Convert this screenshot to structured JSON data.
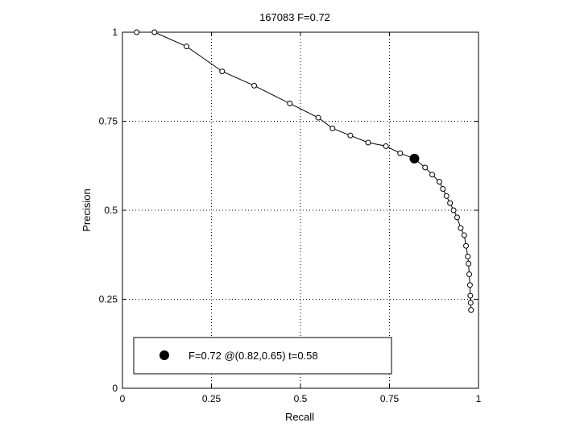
{
  "chart_data": {
    "type": "line",
    "title": "167083 F=0.72",
    "xlabel": "Recall",
    "ylabel": "Precision",
    "xlim": [
      0,
      1
    ],
    "ylim": [
      0,
      1
    ],
    "x_ticks": [
      "0",
      "0.25",
      "0.5",
      "0.75",
      "1"
    ],
    "y_ticks": [
      "0",
      "0.25",
      "0.5",
      "0.75",
      "1"
    ],
    "grid": true,
    "legend_position": "bottom-left",
    "colors": {
      "line": "#000000",
      "marker": "#000000",
      "grid": "#000000"
    },
    "series": [
      {
        "marker": "open-circle",
        "x": [
          0.04,
          0.09,
          0.18,
          0.28,
          0.37,
          0.47,
          0.55,
          0.59,
          0.64,
          0.69,
          0.74,
          0.78,
          0.82,
          0.85,
          0.87,
          0.89,
          0.9,
          0.91,
          0.92,
          0.93,
          0.94,
          0.95,
          0.96,
          0.965,
          0.97,
          0.972,
          0.974,
          0.976,
          0.977,
          0.978,
          0.979
        ],
        "y": [
          1.0,
          1.0,
          0.96,
          0.89,
          0.85,
          0.8,
          0.76,
          0.73,
          0.71,
          0.69,
          0.68,
          0.66,
          0.645,
          0.62,
          0.6,
          0.58,
          0.56,
          0.54,
          0.52,
          0.5,
          0.48,
          0.45,
          0.43,
          0.4,
          0.37,
          0.35,
          0.32,
          0.29,
          0.26,
          0.24,
          0.22
        ]
      }
    ],
    "highlight": {
      "label": "F=0.72 @(0.82,0.65) t=0.58",
      "x": 0.82,
      "y": 0.645,
      "marker": "filled-circle"
    }
  }
}
